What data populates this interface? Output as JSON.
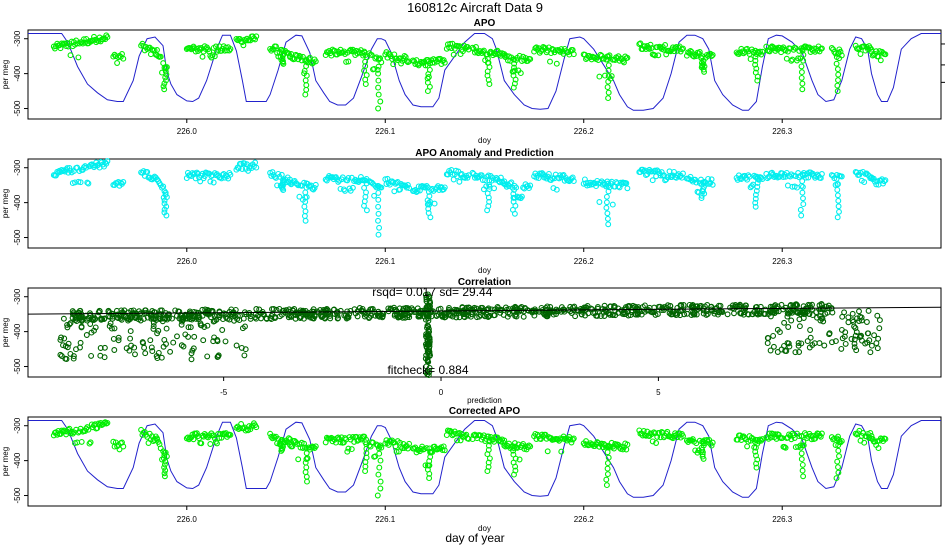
{
  "figure": {
    "title": "160812c   Aircraft Data 9",
    "xlabel": "day of year"
  },
  "colors": {
    "model_line": "#2222cc",
    "apo_points": "#00ee00",
    "anomaly_points": "#00eeee",
    "correlation_points": "#006400",
    "axes": "#000000"
  },
  "chart_data": [
    {
      "type": "scatter",
      "title": "APO",
      "xlabel": "doy",
      "ylabel": "per meg",
      "xlim": [
        225.92,
        226.38
      ],
      "ylim": [
        -530,
        -275
      ],
      "xticks": [
        226.0,
        226.1,
        226.2,
        226.3
      ],
      "xtick_labels": [
        "226.0",
        "226.1",
        "226.2",
        "226.3"
      ],
      "yticks": [
        -300,
        -400,
        -500
      ],
      "ytick_labels": [
        "-300",
        "-400",
        "-500"
      ],
      "series": [
        {
          "kind": "line",
          "x": [
            225.92,
            225.937,
            225.94,
            225.945,
            225.95,
            225.955,
            225.96,
            225.965,
            225.968,
            225.973,
            225.976,
            225.98,
            225.984,
            225.988,
            225.99,
            225.992,
            225.995,
            226.0,
            226.003,
            226.006,
            226.01,
            226.015,
            226.018,
            226.022,
            226.025,
            226.028,
            226.03,
            226.04,
            226.042,
            226.046,
            226.05,
            226.055,
            226.058,
            226.062,
            226.065,
            226.069,
            226.072,
            226.076,
            226.08,
            226.084,
            226.088,
            226.093,
            226.096,
            226.098,
            226.1,
            226.103,
            226.107,
            226.11,
            226.114,
            226.118,
            226.124,
            226.127,
            226.13,
            226.14,
            226.145,
            226.15,
            226.154,
            226.156,
            226.16,
            226.165,
            226.17,
            226.174,
            226.178,
            226.182,
            226.186,
            226.19,
            226.193,
            226.198,
            226.2,
            226.205,
            226.215,
            226.218,
            226.222,
            226.225,
            226.23,
            226.235,
            226.24,
            226.244,
            226.248,
            226.252,
            226.256,
            226.26,
            226.263,
            226.266,
            226.27,
            226.275,
            226.28,
            226.283,
            226.287,
            226.29,
            226.293,
            226.297,
            226.3,
            226.305,
            226.31,
            226.315,
            226.318,
            226.322,
            226.326,
            226.33,
            226.334,
            226.337,
            226.34,
            226.343,
            226.345,
            226.348,
            226.35,
            226.353,
            226.356,
            226.36,
            226.365,
            226.37,
            226.38
          ],
          "y": [
            -285,
            -285,
            -310,
            -380,
            -430,
            -455,
            -475,
            -480,
            -480,
            -420,
            -350,
            -300,
            -295,
            -320,
            -395,
            -430,
            -460,
            -478,
            -480,
            -470,
            -420,
            -330,
            -290,
            -290,
            -335,
            -420,
            -480,
            -480,
            -460,
            -390,
            -310,
            -290,
            -292,
            -340,
            -420,
            -455,
            -480,
            -490,
            -490,
            -470,
            -410,
            -330,
            -300,
            -300,
            -305,
            -340,
            -420,
            -460,
            -490,
            -495,
            -495,
            -470,
            -390,
            -310,
            -285,
            -285,
            -300,
            -330,
            -420,
            -460,
            -490,
            -500,
            -502,
            -500,
            -450,
            -360,
            -300,
            -295,
            -300,
            -330,
            -420,
            -460,
            -495,
            -505,
            -505,
            -500,
            -470,
            -400,
            -310,
            -290,
            -290,
            -300,
            -330,
            -420,
            -460,
            -490,
            -505,
            -505,
            -480,
            -380,
            -300,
            -290,
            -292,
            -310,
            -340,
            -420,
            -460,
            -480,
            -475,
            -420,
            -330,
            -295,
            -300,
            -330,
            -400,
            -460,
            -480,
            -480,
            -440,
            -330,
            -300,
            -285,
            -285
          ]
        },
        {
          "kind": "points",
          "segments": [
            {
              "x": [
                225.933,
                225.96
              ],
              "y": [
                -325,
                -295
              ],
              "min": -350,
              "dip": null
            },
            {
              "x": [
                225.963,
                225.968
              ],
              "y": [
                -352,
                -352
              ],
              "min": -370,
              "dip": null
            },
            {
              "x": [
                225.977,
                225.985
              ],
              "y": [
                -320,
                -340
              ],
              "min": -345,
              "dip": null
            },
            {
              "x": [
                225.985,
                225.99
              ],
              "y": [
                -340,
                -385
              ],
              "min": -400,
              "dip": [
                225.989,
                -445
              ]
            },
            {
              "x": [
                226.0,
                226.022
              ],
              "y": [
                -330,
                -330
              ],
              "min": -350,
              "dip": null
            },
            {
              "x": [
                226.025,
                226.035
              ],
              "y": [
                -305,
                -300
              ],
              "min": -315,
              "dip": null
            },
            {
              "x": [
                226.042,
                226.052
              ],
              "y": [
                -325,
                -345
              ],
              "min": -355,
              "dip": [
                226.048,
                -372
              ]
            },
            {
              "x": [
                226.052,
                226.065
              ],
              "y": [
                -350,
                -365
              ],
              "min": -395,
              "dip": [
                226.06,
                -460
              ]
            },
            {
              "x": [
                226.07,
                226.09
              ],
              "y": [
                -340,
                -340
              ],
              "min": -370,
              "dip": [
                226.09,
                -430
              ]
            },
            {
              "x": [
                226.092,
                226.098
              ],
              "y": [
                -350,
                -360
              ],
              "min": -390,
              "dip": [
                226.097,
                -500
              ]
            },
            {
              "x": [
                226.1,
                226.112
              ],
              "y": [
                -345,
                -360
              ],
              "min": -375,
              "dip": null
            },
            {
              "x": [
                226.114,
                226.13
              ],
              "y": [
                -370,
                -365
              ],
              "min": -410,
              "dip": [
                226.122,
                -450
              ]
            },
            {
              "x": [
                226.131,
                226.142
              ],
              "y": [
                -320,
                -330
              ],
              "min": -345,
              "dip": null
            },
            {
              "x": [
                226.144,
                226.16
              ],
              "y": [
                -330,
                -345
              ],
              "min": -365,
              "dip": [
                226.152,
                -430
              ]
            },
            {
              "x": [
                226.16,
                226.173
              ],
              "y": [
                -355,
                -360
              ],
              "min": -395,
              "dip": [
                226.165,
                -440
              ]
            },
            {
              "x": [
                226.175,
                226.195
              ],
              "y": [
                -330,
                -340
              ],
              "min": -370,
              "dip": null
            },
            {
              "x": [
                226.2,
                226.222
              ],
              "y": [
                -350,
                -360
              ],
              "min": -410,
              "dip": [
                226.212,
                -470
              ]
            },
            {
              "x": [
                226.228,
                226.25
              ],
              "y": [
                -320,
                -330
              ],
              "min": -345,
              "dip": null
            },
            {
              "x": [
                226.252,
                226.265
              ],
              "y": [
                -340,
                -350
              ],
              "min": -375,
              "dip": [
                226.26,
                -395
              ]
            },
            {
              "x": [
                226.277,
                226.29
              ],
              "y": [
                -335,
                -340
              ],
              "min": -360,
              "dip": [
                226.287,
                -420
              ]
            },
            {
              "x": [
                226.292,
                226.32
              ],
              "y": [
                -330,
                -330
              ],
              "min": -360,
              "dip": [
                226.31,
                -445
              ]
            },
            {
              "x": [
                226.325,
                226.33
              ],
              "y": [
                -335,
                -340
              ],
              "min": -355,
              "dip": [
                226.328,
                -450
              ]
            },
            {
              "x": [
                226.337,
                226.345
              ],
              "y": [
                -320,
                -330
              ],
              "min": -345,
              "dip": null
            },
            {
              "x": [
                226.345,
                226.352
              ],
              "y": [
                -340,
                -345
              ],
              "min": -360,
              "dip": null
            }
          ]
        }
      ],
      "ticks_right": [
        -315,
        -375,
        -425
      ]
    },
    {
      "type": "scatter",
      "title": "APO Anomaly and Prediction",
      "xlabel": "doy",
      "ylabel": "per meg",
      "xlim": [
        225.92,
        226.38
      ],
      "ylim": [
        -530,
        -275
      ],
      "xticks": [
        226.0,
        226.1,
        226.2,
        226.3
      ],
      "xtick_labels": [
        "226.0",
        "226.1",
        "226.2",
        "226.3"
      ],
      "yticks": [
        -300,
        -400,
        -500
      ],
      "ytick_labels": [
        "-300",
        "-400",
        "-500"
      ]
    },
    {
      "type": "scatter",
      "title": "Correlation",
      "xlabel": "prediction",
      "ylabel": "per meg",
      "xlim": [
        -9.5,
        11.5
      ],
      "ylim": [
        -530,
        -275
      ],
      "xticks": [
        -5,
        0,
        5
      ],
      "xtick_labels": [
        "-5",
        "0",
        "5"
      ],
      "yticks": [
        -300,
        -400,
        -500
      ],
      "ytick_labels": [
        "-300",
        "-400",
        "-500"
      ],
      "annotations": {
        "rsqd": "rsqd= 0.017 sd= 29.44",
        "fitcheck": "fitcheck= 0.884"
      },
      "fit_line": {
        "x": [
          -9.5,
          11.5
        ],
        "y": [
          -350,
          -330
        ]
      }
    },
    {
      "type": "scatter",
      "title": "Corrected APO",
      "xlabel": "doy",
      "ylabel": "per meg",
      "xlim": [
        225.92,
        226.38
      ],
      "ylim": [
        -530,
        -275
      ],
      "xticks": [
        226.0,
        226.1,
        226.2,
        226.3
      ],
      "xtick_labels": [
        "226.0",
        "226.1",
        "226.2",
        "226.3"
      ],
      "yticks": [
        -300,
        -400,
        -500
      ],
      "ytick_labels": [
        "-300",
        "-400",
        "-500"
      ]
    }
  ]
}
